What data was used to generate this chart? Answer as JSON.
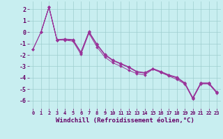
{
  "title": "",
  "xlabel": "Windchill (Refroidissement éolien,°C)",
  "background_color": "#c8eef0",
  "line_color": "#993399",
  "xlim": [
    -0.5,
    23.5
  ],
  "ylim": [
    -6.7,
    2.7
  ],
  "xticks": [
    0,
    1,
    2,
    3,
    4,
    5,
    6,
    7,
    8,
    9,
    10,
    11,
    12,
    13,
    14,
    15,
    16,
    17,
    18,
    19,
    20,
    21,
    22,
    23
  ],
  "yticks": [
    -6,
    -5,
    -4,
    -3,
    -2,
    -1,
    0,
    1,
    2
  ],
  "series": [
    {
      "x": [
        0,
        1,
        2,
        3,
        4,
        5,
        6,
        7,
        8,
        9,
        10,
        11,
        12,
        13,
        14,
        15,
        16,
        17,
        18,
        19,
        20,
        21,
        22,
        23
      ],
      "y": [
        -1.5,
        0.0,
        2.2,
        -0.7,
        -0.65,
        -0.7,
        -1.8,
        0.0,
        -1.1,
        -2.0,
        -2.5,
        -2.8,
        -3.1,
        -3.5,
        -3.6,
        -3.2,
        -3.5,
        -3.8,
        -4.0,
        -4.5,
        -5.8,
        -4.5,
        -4.5,
        -5.3
      ]
    },
    {
      "x": [
        0,
        1,
        2,
        3,
        4,
        5,
        6,
        7,
        8,
        9,
        10,
        11,
        12,
        13,
        14,
        15,
        16,
        17,
        18,
        19,
        20,
        21,
        22,
        23
      ],
      "y": [
        -1.5,
        0.0,
        2.2,
        -0.7,
        -0.7,
        -0.8,
        -1.95,
        -0.1,
        -1.3,
        -2.2,
        -2.7,
        -3.0,
        -3.35,
        -3.65,
        -3.75,
        -3.25,
        -3.55,
        -3.85,
        -4.15,
        -4.55,
        -5.85,
        -4.55,
        -4.55,
        -5.35
      ]
    },
    {
      "x": [
        1,
        2,
        3,
        4,
        5,
        6,
        7,
        8,
        9,
        10,
        11,
        12,
        13,
        14,
        15,
        16,
        17,
        18,
        19,
        20,
        21,
        22,
        23
      ],
      "y": [
        0.0,
        2.2,
        -0.7,
        -0.65,
        -0.7,
        -1.8,
        0.0,
        -1.1,
        -2.0,
        -2.5,
        -2.8,
        -3.1,
        -3.5,
        -3.6,
        -3.25,
        -3.5,
        -3.8,
        -4.0,
        -4.5,
        -5.85,
        -4.5,
        -4.5,
        -5.3
      ]
    },
    {
      "x": [
        1,
        2,
        3,
        4,
        5,
        6,
        7,
        8,
        9,
        10,
        11,
        12,
        13,
        14,
        15,
        16,
        17,
        18,
        19,
        20,
        21,
        22,
        23
      ],
      "y": [
        0.0,
        2.2,
        -0.65,
        -0.6,
        -0.65,
        -1.75,
        0.05,
        -1.05,
        -1.95,
        -2.45,
        -2.75,
        -3.05,
        -3.45,
        -3.55,
        -3.2,
        -3.45,
        -3.75,
        -3.95,
        -4.45,
        -5.75,
        -4.45,
        -4.45,
        -5.25
      ]
    }
  ]
}
